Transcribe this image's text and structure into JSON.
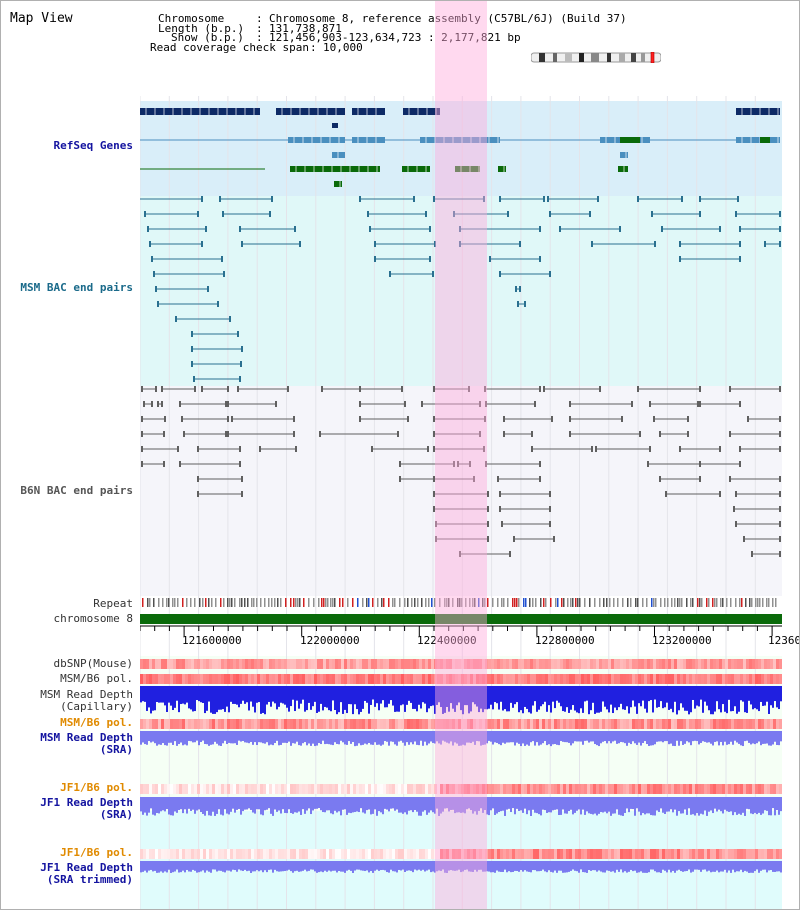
{
  "title": "Map View",
  "header": {
    "chromosome_label": "Chromosome",
    "chromosome_value": "Chromosome 8, reference assembly (C57BL/6J) (Build 37)",
    "length_label": "Length (b.p.)",
    "length_value": "131,738,871",
    "show_label": "Show (b.p.)",
    "show_value": "121,456,903-123,634,723 : 2,177,821 bp",
    "coverage_label": "Read coverage check span",
    "coverage_value": "10,000"
  },
  "tracks": {
    "refseq": "RefSeq Genes",
    "msm_bac": "MSM BAC end pairs",
    "b6n_bac": "B6N BAC end pairs",
    "repeat": "Repeat",
    "chromosome": "chromosome 8",
    "dbsnp": "dbSNP(Mouse)",
    "msm_pol": "MSM/B6 pol.",
    "msm_depth_cap": "MSM Read Depth\n(Capillary)",
    "msm_pol2": "MSM/B6 pol.",
    "msm_depth_sra": "MSM Read Depth\n(SRA)",
    "jf1_pol": "JF1/B6 pol.",
    "jf1_depth_sra": "JF1 Read Depth\n(SRA)",
    "jf1_pol2": "JF1/B6 pol.",
    "jf1_depth_trim": "JF1 Read Depth\n(SRA trimmed)"
  },
  "axis": {
    "ticks": [
      "121600000",
      "122000000",
      "122400000",
      "122800000",
      "123200000",
      "12360"
    ]
  },
  "colors": {
    "refseq_bg": "#d9eef9",
    "msm_bg": "#e0f8f8",
    "b6n_bg": "#f5f5fa",
    "highlight": "#ffaadc",
    "gene_dark": "#0d2a66",
    "gene_mid": "#4a8fbf",
    "gene_green": "#0a6a0a",
    "msm_line": "#2a7090",
    "b6n_line": "#606060",
    "chrom": "#0a6a0a",
    "depth_blue": "#2020e0",
    "depth_violet": "#7a7af0",
    "pol_red": "#ff3030"
  }
}
